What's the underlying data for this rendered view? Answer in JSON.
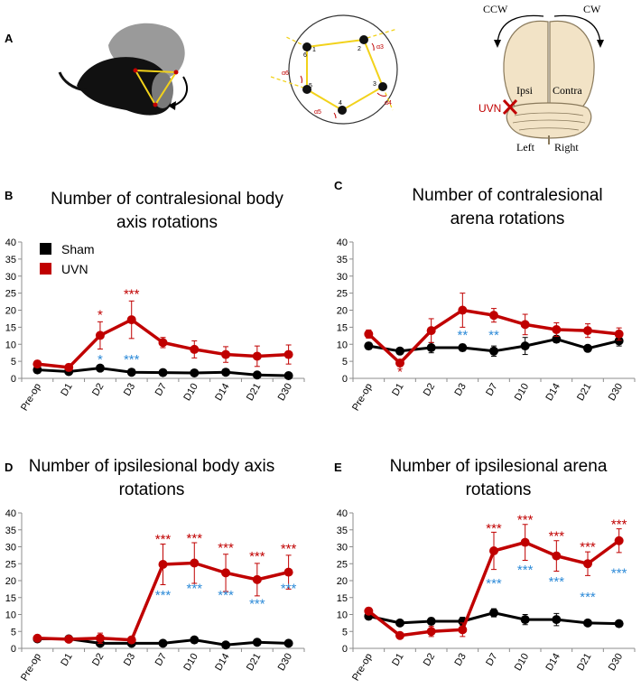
{
  "panel_labels": {
    "a": "A",
    "b": "B",
    "c": "C",
    "d": "D",
    "e": "E"
  },
  "panel_a": {
    "arena_numbers": [
      "1",
      "2",
      "3",
      "4",
      "5",
      "6"
    ],
    "arena_angles": [
      "α3",
      "α4",
      "α5",
      "α6"
    ],
    "brain": {
      "ccw": "CCW",
      "cw": "CW",
      "ipsi": "Ipsi",
      "contra": "Contra",
      "left": "Left",
      "right": "Right",
      "lesion": "UVN"
    }
  },
  "colors": {
    "sham": "#000000",
    "uvn": "#c00000",
    "stars_uvn": "#c00000",
    "stars_sham": "#2e8bd8",
    "arena_path": "#f2d21b"
  },
  "chart_data": [
    {
      "id": "B",
      "type": "line",
      "title_lines": [
        "Number of contralesional body",
        "axis rotations"
      ],
      "categories": [
        "Pre-op",
        "D1",
        "D2",
        "D3",
        "D7",
        "D10",
        "D14",
        "D21",
        "D30"
      ],
      "ylim": [
        0,
        40
      ],
      "yticks": [
        0,
        5,
        10,
        15,
        20,
        25,
        30,
        35,
        40
      ],
      "legend": {
        "sham": "Sham",
        "uvn": "UVN"
      },
      "series": [
        {
          "name": "Sham",
          "values": [
            2.5,
            2.0,
            3.0,
            1.8,
            1.7,
            1.6,
            1.8,
            1.0,
            0.8
          ],
          "errors": [
            0.5,
            0.5,
            0.6,
            0.5,
            0.5,
            0.5,
            0.5,
            0.4,
            0.4
          ]
        },
        {
          "name": "UVN",
          "values": [
            4.2,
            3.2,
            12.6,
            17.2,
            10.5,
            8.5,
            7.0,
            6.5,
            7.0
          ],
          "errors": [
            1.0,
            1.0,
            4.0,
            5.5,
            1.5,
            2.5,
            2.3,
            3.0,
            2.8
          ]
        }
      ],
      "annotations": {
        "uvn": [
          {
            "index": 2,
            "text": "*",
            "value": 19.0
          },
          {
            "index": 3,
            "text": "***",
            "value": 25.0
          }
        ],
        "sham": [
          {
            "index": 2,
            "text": "*",
            "value": 5.8
          },
          {
            "index": 3,
            "text": "***",
            "value": 5.8
          }
        ]
      }
    },
    {
      "id": "C",
      "type": "line",
      "title_lines": [
        "Number of contralesional",
        "arena rotations"
      ],
      "categories": [
        "Pre-op",
        "D1",
        "D2",
        "D3",
        "D7",
        "D10",
        "D14",
        "D21",
        "D30"
      ],
      "ylim": [
        0,
        40
      ],
      "yticks": [
        0,
        5,
        10,
        15,
        20,
        25,
        30,
        35,
        40
      ],
      "series": [
        {
          "name": "Sham",
          "values": [
            9.5,
            8.0,
            9.0,
            9.0,
            8.0,
            9.5,
            11.5,
            8.8,
            11.0
          ],
          "errors": [
            1.0,
            0.8,
            1.5,
            1.0,
            1.5,
            2.5,
            1.0,
            0.8,
            1.5
          ]
        },
        {
          "name": "UVN",
          "values": [
            13.0,
            4.5,
            14.0,
            20.0,
            18.5,
            15.8,
            14.3,
            14.0,
            13.0
          ],
          "errors": [
            1.2,
            1.0,
            3.5,
            5.0,
            2.0,
            3.0,
            2.0,
            2.0,
            1.8
          ]
        }
      ],
      "annotations": {
        "uvn": [
          {
            "index": 1,
            "text": "*",
            "value": 2.3
          }
        ],
        "sham": [
          {
            "index": 3,
            "text": "**",
            "value": 13.0
          },
          {
            "index": 4,
            "text": "**",
            "value": 13.0
          }
        ]
      }
    },
    {
      "id": "D",
      "type": "line",
      "title_lines": [
        "Number of ipsilesional body axis",
        "rotations"
      ],
      "categories": [
        "Pre-op",
        "D1",
        "D2",
        "D3",
        "D7",
        "D10",
        "D14",
        "D21",
        "D30"
      ],
      "ylim": [
        0,
        40
      ],
      "yticks": [
        0,
        5,
        10,
        15,
        20,
        25,
        30,
        35,
        40
      ],
      "series": [
        {
          "name": "Sham",
          "values": [
            2.8,
            2.8,
            1.5,
            1.5,
            1.5,
            2.5,
            1.0,
            1.8,
            1.5
          ],
          "errors": [
            0.5,
            0.6,
            0.8,
            0.5,
            0.5,
            0.6,
            0.4,
            0.5,
            0.5
          ]
        },
        {
          "name": "UVN",
          "values": [
            3.0,
            2.7,
            3.0,
            2.5,
            24.8,
            25.2,
            22.3,
            20.3,
            22.5
          ],
          "errors": [
            0.5,
            0.8,
            1.5,
            0.5,
            6.0,
            6.0,
            5.5,
            4.8,
            5.0
          ]
        }
      ],
      "annotations": {
        "uvn": [
          {
            "index": 4,
            "text": "***",
            "value": 32.5
          },
          {
            "index": 5,
            "text": "***",
            "value": 32.8
          },
          {
            "index": 6,
            "text": "***",
            "value": 30.0
          },
          {
            "index": 7,
            "text": "***",
            "value": 27.5
          },
          {
            "index": 8,
            "text": "***",
            "value": 29.8
          }
        ],
        "sham": [
          {
            "index": 4,
            "text": "***",
            "value": 16.0
          },
          {
            "index": 5,
            "text": "***",
            "value": 18.0
          },
          {
            "index": 6,
            "text": "***",
            "value": 16.0
          },
          {
            "index": 7,
            "text": "***",
            "value": 13.5
          },
          {
            "index": 8,
            "text": "***",
            "value": 18.0
          }
        ]
      }
    },
    {
      "id": "E",
      "type": "line",
      "title_lines": [
        "Number of ipsilesional arena",
        "rotations"
      ],
      "categories": [
        "Pre-op",
        "D1",
        "D2",
        "D3",
        "D7",
        "D10",
        "D14",
        "D21",
        "D30"
      ],
      "ylim": [
        0,
        40
      ],
      "yticks": [
        0,
        5,
        10,
        15,
        20,
        25,
        30,
        35,
        40
      ],
      "series": [
        {
          "name": "Sham",
          "values": [
            9.5,
            7.5,
            8.0,
            8.0,
            10.5,
            8.5,
            8.5,
            7.5,
            7.3
          ],
          "errors": [
            1.0,
            0.8,
            1.0,
            1.2,
            1.2,
            1.5,
            1.8,
            0.8,
            0.8
          ]
        },
        {
          "name": "UVN",
          "values": [
            11.0,
            3.8,
            5.0,
            5.5,
            28.8,
            31.3,
            27.3,
            25.0,
            31.8
          ],
          "errors": [
            1.0,
            0.8,
            1.5,
            2.0,
            5.5,
            5.3,
            4.5,
            3.5,
            3.5
          ]
        }
      ],
      "annotations": {
        "uvn": [
          {
            "index": 4,
            "text": "***",
            "value": 35.8
          },
          {
            "index": 5,
            "text": "***",
            "value": 38.3
          },
          {
            "index": 6,
            "text": "***",
            "value": 33.5
          },
          {
            "index": 7,
            "text": "***",
            "value": 30.3
          },
          {
            "index": 8,
            "text": "***",
            "value": 37.0
          }
        ],
        "sham": [
          {
            "index": 4,
            "text": "***",
            "value": 19.5
          },
          {
            "index": 5,
            "text": "***",
            "value": 23.5
          },
          {
            "index": 6,
            "text": "***",
            "value": 20.0
          },
          {
            "index": 7,
            "text": "***",
            "value": 15.5
          },
          {
            "index": 8,
            "text": "***",
            "value": 22.5
          }
        ]
      }
    }
  ]
}
